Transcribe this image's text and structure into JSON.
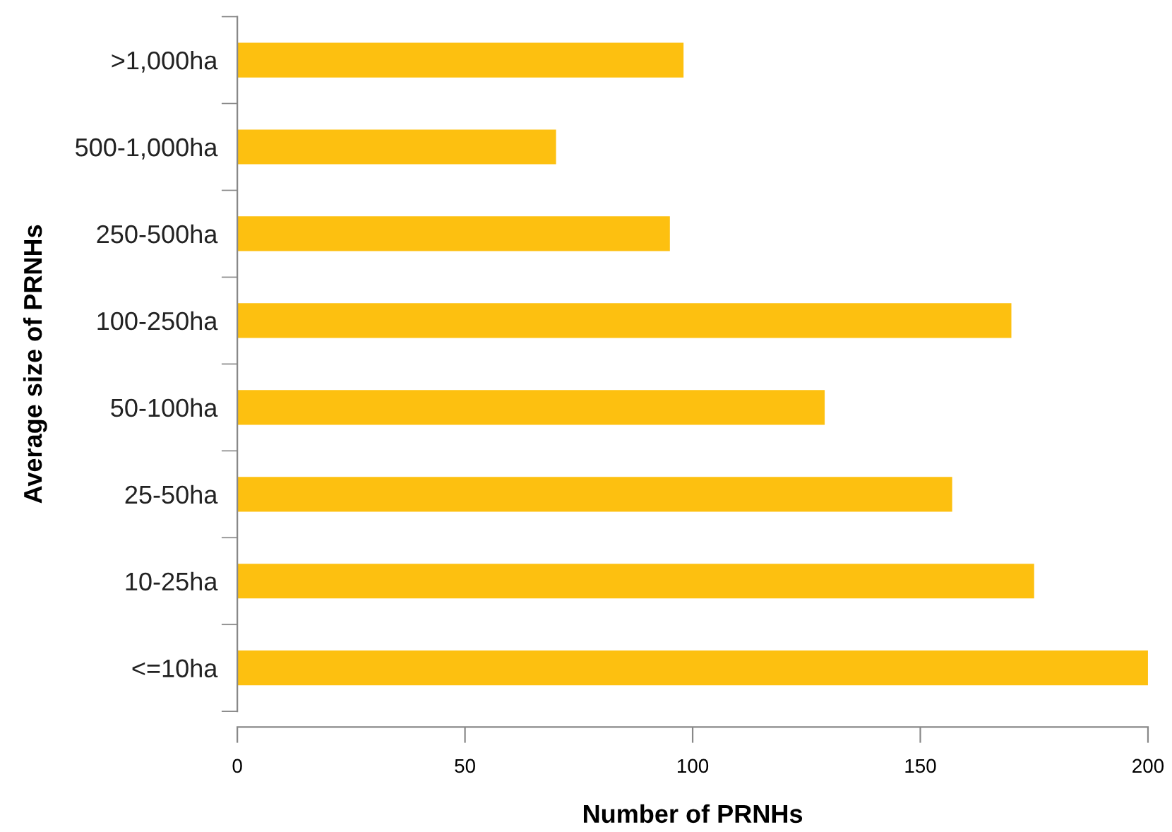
{
  "chart_data": {
    "type": "bar",
    "orientation": "horizontal",
    "categories": [
      ">1,000ha",
      "500-1,000ha",
      "250-500ha",
      "100-250ha",
      "50-100ha",
      "25-50ha",
      "10-25ha",
      "<=10ha"
    ],
    "values": [
      98,
      70,
      95,
      170,
      129,
      157,
      175,
      200
    ],
    "color": "#fdc010",
    "xlabel": "Number of PRNHs",
    "ylabel": "Average size of PRNHs",
    "xlim": [
      0,
      200
    ],
    "xticks": [
      0,
      50,
      100,
      150,
      200
    ],
    "grid": false,
    "legend": false
  }
}
